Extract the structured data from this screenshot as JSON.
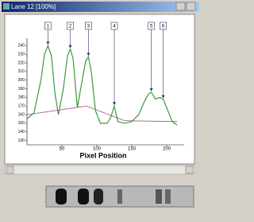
{
  "window": {
    "title": "Lane 12 [100%]"
  },
  "chart_data": {
    "type": "line",
    "x_label": "Pixel Position",
    "x": [
      0,
      10,
      20,
      25,
      30,
      35,
      40,
      45,
      52,
      58,
      62,
      66,
      72,
      78,
      84,
      88,
      92,
      98,
      105,
      115,
      120,
      125,
      130,
      140,
      150,
      160,
      168,
      174,
      178,
      184,
      190,
      195,
      200,
      208,
      215
    ],
    "values": [
      155,
      162,
      200,
      230,
      240,
      228,
      185,
      160,
      190,
      228,
      236,
      225,
      168,
      195,
      222,
      227,
      210,
      165,
      150,
      150,
      157,
      170,
      152,
      150,
      152,
      160,
      175,
      184,
      186,
      178,
      180,
      178,
      168,
      152,
      148
    ],
    "color": "#3c9a3c",
    "baseline": {
      "x": [
        0,
        85,
        140,
        215
      ],
      "values": [
        160,
        170,
        153,
        152
      ],
      "color": "#a0508c"
    },
    "peaks": [
      {
        "label": "1",
        "x": 30
      },
      {
        "label": "2",
        "x": 62
      },
      {
        "label": "3",
        "x": 88
      },
      {
        "label": "4",
        "x": 125
      },
      {
        "label": "5",
        "x": 178
      },
      {
        "label": "6",
        "x": 195
      }
    ],
    "xlim": [
      0,
      225
    ],
    "xticks": [
      50,
      100,
      150,
      200
    ],
    "ylim": [
      125,
      245
    ],
    "yticks": [
      130,
      140,
      150,
      160,
      170,
      180,
      190,
      200,
      210,
      220,
      230,
      240
    ]
  }
}
